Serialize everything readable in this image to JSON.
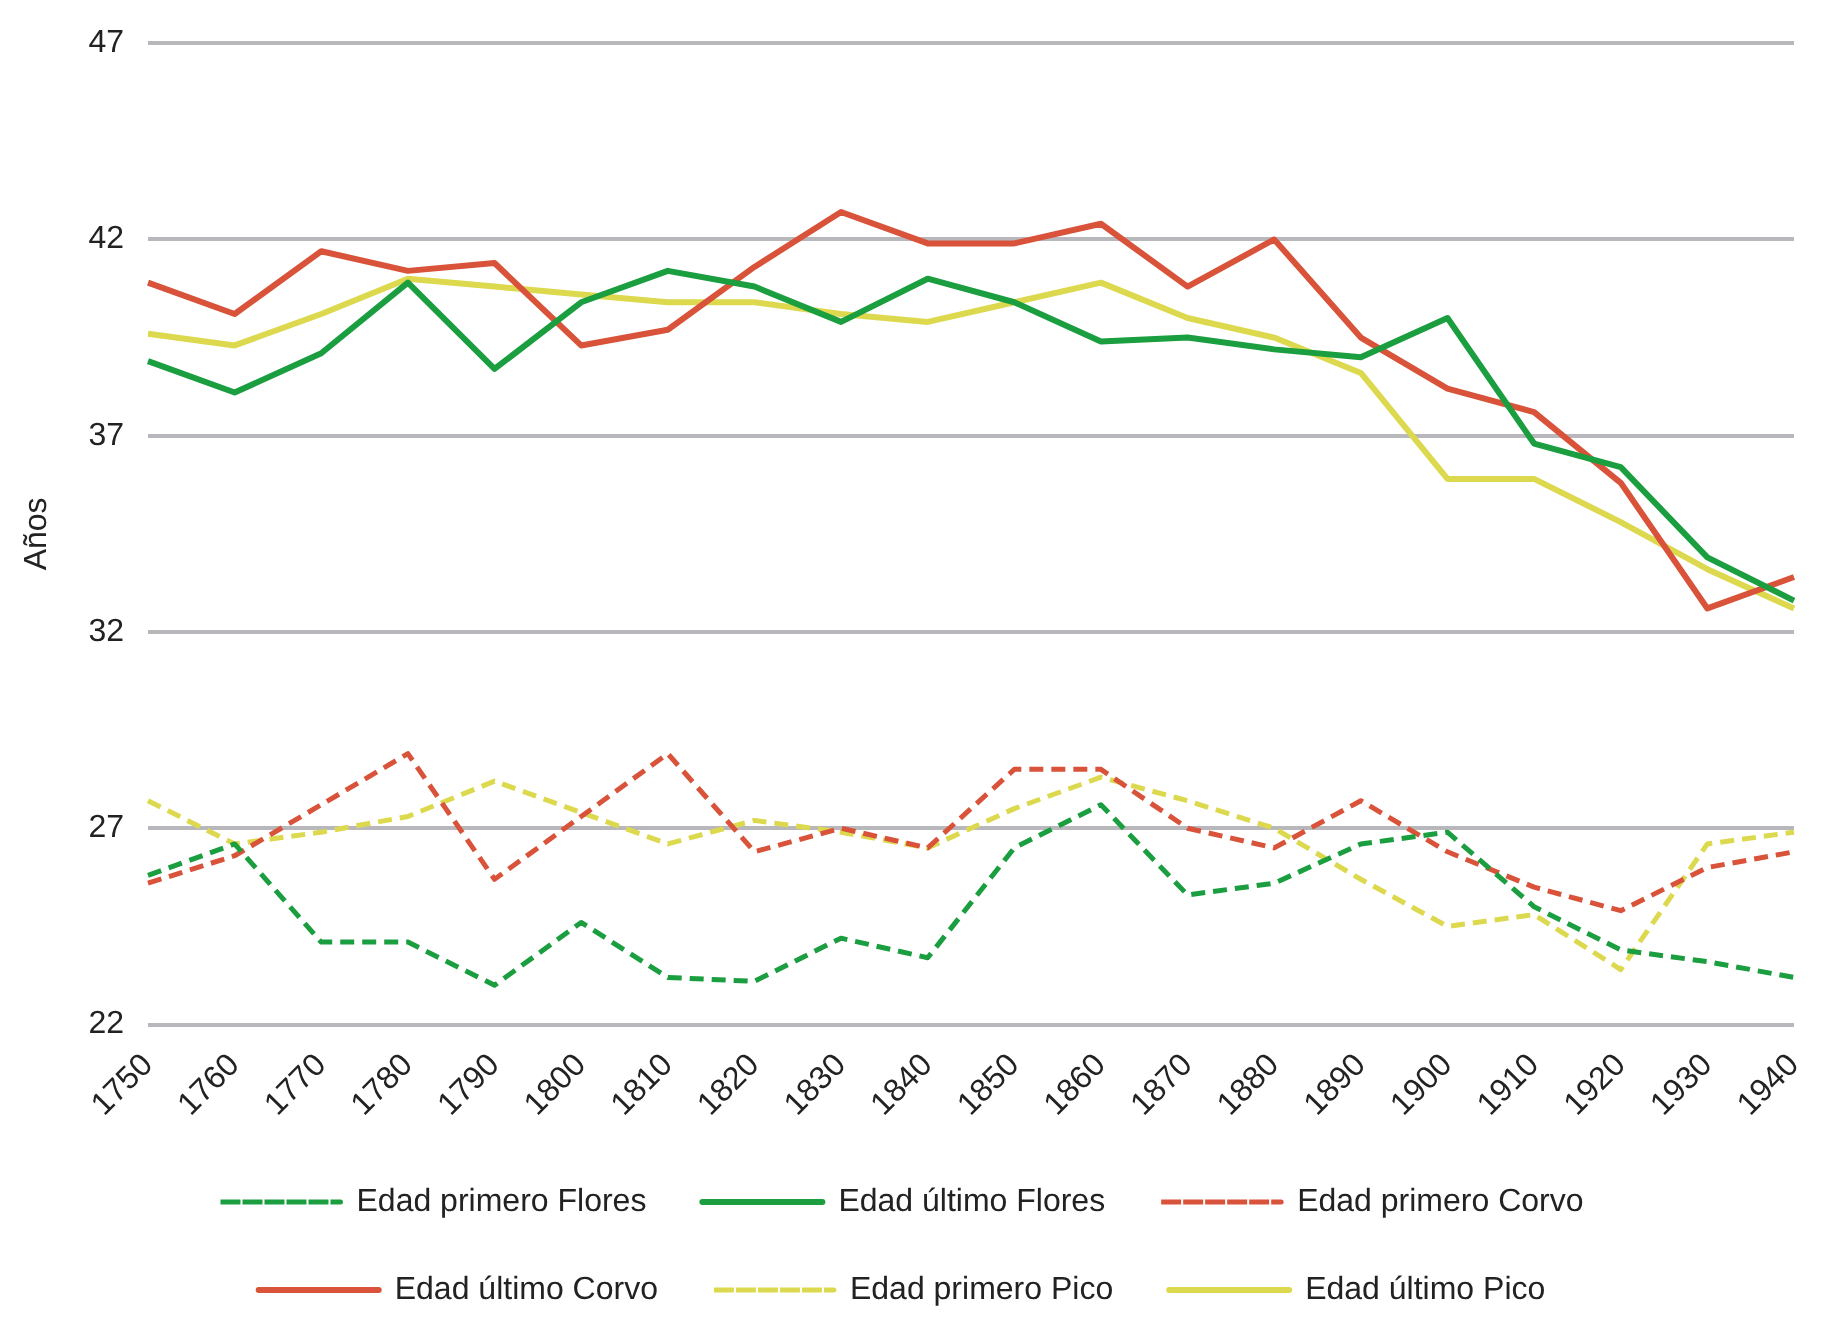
{
  "chart_data": {
    "type": "line",
    "ylabel": "Años",
    "categories": [
      "1750",
      "1760",
      "1770",
      "1780",
      "1790",
      "1800",
      "1810",
      "1820",
      "1830",
      "1840",
      "1850",
      "1860",
      "1870",
      "1880",
      "1890",
      "1900",
      "1910",
      "1920",
      "1930",
      "1940"
    ],
    "ylim": [
      22,
      47
    ],
    "yticks": [
      22,
      27,
      32,
      37,
      42,
      47
    ],
    "grid": "y",
    "legend": "bottom",
    "marker": "none",
    "series": [
      {
        "name": "Edad primero Flores",
        "color": "#1a9e3f",
        "line_style": "dashed",
        "values": [
          25.8,
          26.6,
          24.1,
          24.1,
          23.0,
          24.6,
          23.2,
          23.1,
          24.2,
          23.7,
          26.5,
          27.6,
          25.3,
          25.6,
          26.6,
          26.9,
          25.0,
          23.9,
          23.6,
          23.2
        ]
      },
      {
        "name": "Edad último Flores",
        "color": "#1a9e3f",
        "line_style": "solid",
        "values": [
          38.9,
          38.1,
          39.1,
          40.9,
          38.7,
          40.4,
          41.2,
          40.8,
          39.9,
          41.0,
          40.4,
          39.4,
          39.5,
          39.2,
          39.0,
          40.0,
          36.8,
          36.2,
          33.9,
          32.8
        ]
      },
      {
        "name": "Edad primero Corvo",
        "color": "#d9533a",
        "line_style": "dashed",
        "values": [
          25.6,
          26.3,
          27.6,
          28.9,
          25.7,
          27.3,
          28.9,
          26.4,
          27.0,
          26.5,
          28.5,
          28.5,
          27.0,
          26.5,
          27.7,
          26.4,
          25.5,
          24.9,
          26.0,
          26.4
        ]
      },
      {
        "name": "Edad último Corvo",
        "color": "#d9533a",
        "line_style": "solid",
        "values": [
          40.9,
          40.1,
          41.7,
          41.2,
          41.4,
          39.3,
          39.7,
          41.3,
          42.7,
          41.9,
          41.9,
          42.4,
          40.8,
          42.0,
          39.5,
          38.2,
          37.6,
          35.8,
          32.6,
          33.4
        ]
      },
      {
        "name": "Edad primero Pico",
        "color": "#dcd94e",
        "line_style": "dashed",
        "values": [
          27.7,
          26.6,
          26.9,
          27.3,
          28.2,
          27.4,
          26.6,
          27.2,
          26.9,
          26.5,
          27.5,
          28.3,
          27.7,
          27.0,
          25.7,
          24.5,
          24.8,
          23.4,
          26.6,
          26.9
        ]
      },
      {
        "name": "Edad último Pico",
        "color": "#dcd94e",
        "line_style": "solid",
        "values": [
          39.6,
          39.3,
          40.1,
          41.0,
          40.8,
          40.6,
          40.4,
          40.4,
          40.1,
          39.9,
          40.4,
          40.9,
          40.0,
          39.5,
          38.6,
          35.9,
          35.9,
          34.8,
          33.6,
          32.6
        ]
      }
    ]
  }
}
